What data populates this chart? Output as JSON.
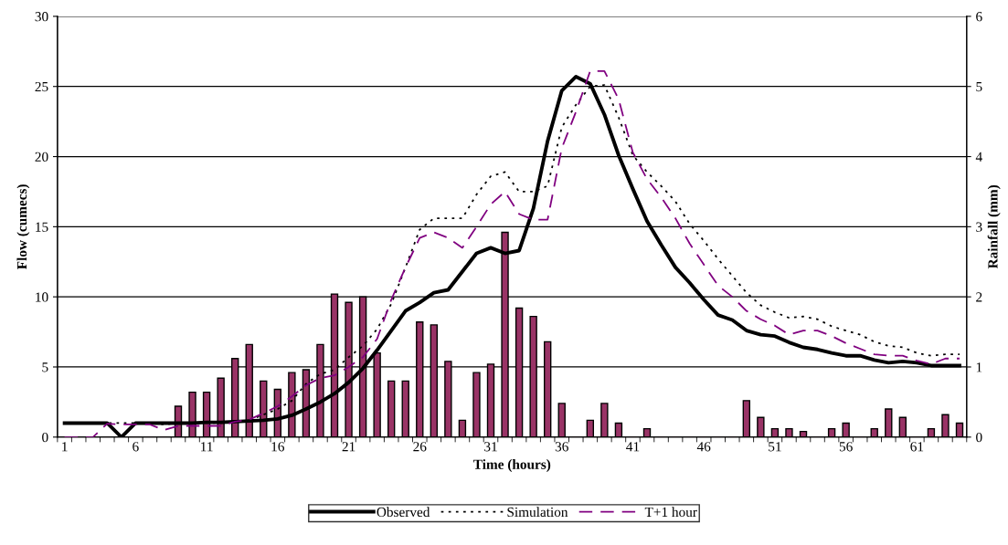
{
  "chart_data": {
    "type": "line",
    "xlabel": "Time (hours)",
    "ylabel": "Flow (cumecs)",
    "y2label": "Rainfall (mm)",
    "categories": [
      "1",
      null,
      null,
      null,
      null,
      "6",
      null,
      null,
      null,
      null,
      "11",
      null,
      null,
      null,
      null,
      "16",
      null,
      null,
      null,
      null,
      "21",
      null,
      null,
      null,
      null,
      "26",
      null,
      null,
      null,
      null,
      "31",
      null,
      null,
      null,
      null,
      "36",
      null,
      null,
      null,
      null,
      "41",
      null,
      null,
      null,
      null,
      "46",
      null,
      null,
      null,
      null,
      "51",
      null,
      null,
      null,
      null,
      "56",
      null,
      null,
      null,
      null,
      "61",
      null,
      null,
      null
    ],
    "ylim": [
      0,
      30
    ],
    "yticks": [
      0,
      5,
      10,
      15,
      20,
      25,
      30
    ],
    "y2lim": [
      0,
      6
    ],
    "y2ticks": [
      0,
      1,
      2,
      3,
      4,
      5,
      6
    ],
    "grid": "y",
    "legend": "bottom",
    "series": [
      {
        "type": "bar",
        "axis": "y2",
        "color": "#993366",
        "values": [
          0,
          0,
          0,
          0,
          0,
          0,
          0,
          0,
          0.44,
          0.64,
          0.64,
          0.84,
          1.12,
          1.32,
          0.8,
          0.68,
          0.92,
          0.96,
          1.32,
          2.04,
          1.92,
          2.0,
          1.2,
          0.8,
          0.8,
          1.64,
          1.6,
          1.08,
          0.24,
          0.92,
          1.04,
          2.92,
          1.84,
          1.72,
          1.36,
          0.48,
          0,
          0.24,
          0.48,
          0.2,
          0,
          0.12,
          0,
          0,
          0,
          0,
          0,
          0,
          0.52,
          0.28,
          0.12,
          0.12,
          0.08,
          0,
          0.12,
          0.2,
          0,
          0.12,
          0.4,
          0.28,
          0,
          0.12,
          0.32,
          0.2
        ]
      },
      {
        "name": "Observed",
        "color": "#000000",
        "line_style": "solid",
        "values": [
          1.0,
          1.0,
          1.0,
          1.0,
          0,
          1.0,
          1.0,
          1.0,
          1.0,
          1.0,
          1.05,
          1.05,
          1.1,
          1.15,
          1.2,
          1.3,
          1.55,
          2.0,
          2.5,
          3.1,
          3.9,
          4.9,
          6.2,
          7.6,
          9.0,
          9.6,
          10.3,
          10.5,
          11.8,
          13.1,
          13.5,
          13.1,
          13.3,
          16.3,
          21.1,
          24.7,
          25.7,
          25.2,
          23.0,
          20.1,
          17.7,
          15.4,
          13.7,
          12.1,
          11.0,
          9.8,
          8.7,
          8.35,
          7.6,
          7.3,
          7.2,
          6.75,
          6.4,
          6.25,
          6.0,
          5.8,
          5.8,
          5.5,
          5.3,
          5.4,
          5.3,
          5.1,
          5.1,
          5.1
        ]
      },
      {
        "name": "Simulation",
        "color": "#000000",
        "line_style": "dotted",
        "values": [
          1.0,
          1.0,
          1.0,
          1.0,
          1.0,
          1.0,
          1.0,
          0.9,
          1.0,
          1.0,
          1.0,
          1.0,
          1.1,
          1.2,
          1.6,
          2.0,
          2.6,
          3.8,
          4.5,
          4.8,
          5.7,
          6.5,
          7.7,
          9.5,
          12.1,
          14.8,
          15.6,
          15.6,
          15.6,
          17.3,
          18.6,
          18.9,
          17.5,
          17.5,
          17.9,
          22.1,
          23.7,
          25.0,
          25.1,
          22.8,
          20.1,
          18.9,
          17.9,
          16.8,
          15.2,
          14.0,
          12.7,
          11.5,
          10.3,
          9.4,
          8.9,
          8.5,
          8.6,
          8.4,
          7.9,
          7.6,
          7.3,
          6.8,
          6.5,
          6.4,
          6.0,
          5.8,
          5.9,
          5.9
        ]
      },
      {
        "name": "T+1 hour",
        "color": "#800080",
        "line_style": "dashed",
        "values": [
          0,
          0,
          0,
          0.95,
          0.9,
          0.9,
          0.9,
          0.5,
          0.8,
          0.8,
          0.8,
          0.8,
          1.1,
          1.25,
          1.7,
          2.2,
          2.9,
          3.7,
          4.2,
          4.4,
          5.0,
          5.7,
          7.0,
          9.8,
          12.1,
          14.2,
          14.6,
          14.2,
          13.5,
          15.0,
          16.6,
          17.5,
          15.9,
          15.5,
          15.5,
          20.6,
          23.2,
          26.1,
          26.1,
          24.1,
          20.3,
          18.4,
          17.1,
          15.6,
          13.8,
          12.3,
          10.8,
          10.0,
          9.0,
          8.4,
          7.95,
          7.3,
          7.6,
          7.6,
          7.2,
          6.7,
          6.3,
          5.9,
          5.8,
          5.8,
          5.45,
          5.2,
          5.6,
          5.6
        ]
      }
    ]
  }
}
